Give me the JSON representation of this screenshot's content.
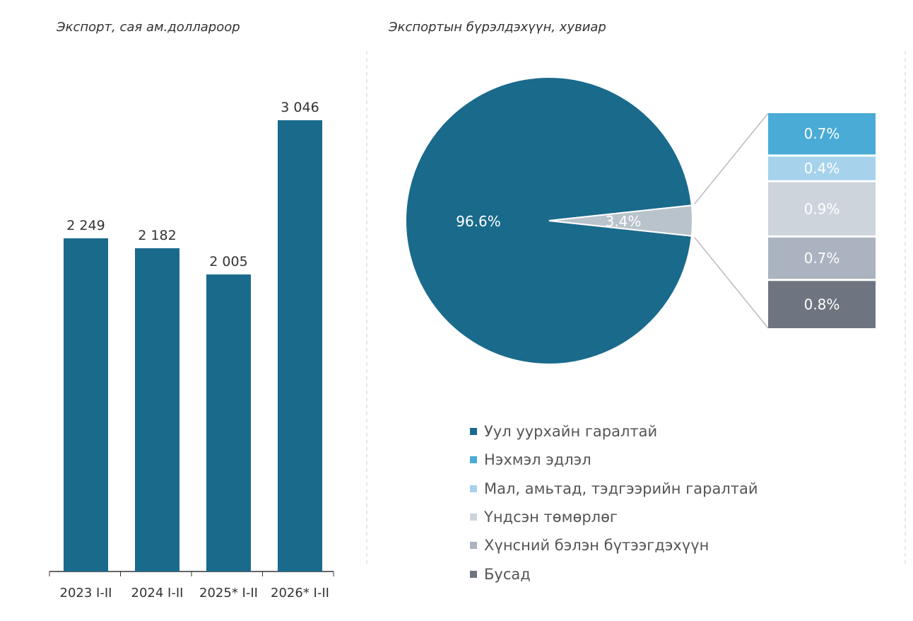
{
  "chart_data": [
    {
      "type": "bar",
      "title": "Экспорт, сая ам.доллароор",
      "categories": [
        "2023 I-II",
        "2024 I-II",
        "2025* I-II",
        "2026* I-II"
      ],
      "values": [
        2249,
        2182,
        2005,
        3046
      ],
      "data_labels": [
        "2 249",
        "2 182",
        "2 005",
        "3 046"
      ],
      "color": "#1a6a8c",
      "grid": false
    },
    {
      "type": "pie",
      "subtype": "pie-of-pie",
      "title": "Экспортын бүрэлдэхүүн, хувиар",
      "main_slices": [
        {
          "label": "96.6%",
          "value": 96.6,
          "color": "#1a6a8c"
        },
        {
          "label": "3.4%",
          "value": 3.4,
          "color": "#b9c3cc"
        }
      ],
      "breakdown": [
        {
          "label": "0.7%",
          "value": 0.7,
          "color": "#4aabd6"
        },
        {
          "label": "0.4%",
          "value": 0.4,
          "color": "#a6d2ec"
        },
        {
          "label": "0.9%",
          "value": 0.9,
          "color": "#cdd4dc"
        },
        {
          "label": "0.7%",
          "value": 0.7,
          "color": "#aab3bf"
        },
        {
          "label": "0.8%",
          "value": 0.8,
          "color": "#6e7580"
        }
      ],
      "legend_position": "bottom",
      "legend": [
        {
          "name": "Уул уурхайн гаралтай",
          "color": "#1a6a8c"
        },
        {
          "name": "Нэхмэл эдлэл",
          "color": "#4aabd6"
        },
        {
          "name": "Мал, амьтад, тэдгээрийн гаралтай",
          "color": "#a6d2ec"
        },
        {
          "name": "Үндсэн төмөрлөг",
          "color": "#cdd4dc"
        },
        {
          "name": "Хүнсний бэлэн бүтээгдэхүүн",
          "color": "#aab3bf"
        },
        {
          "name": "Бусад",
          "color": "#6e7580"
        }
      ]
    }
  ]
}
